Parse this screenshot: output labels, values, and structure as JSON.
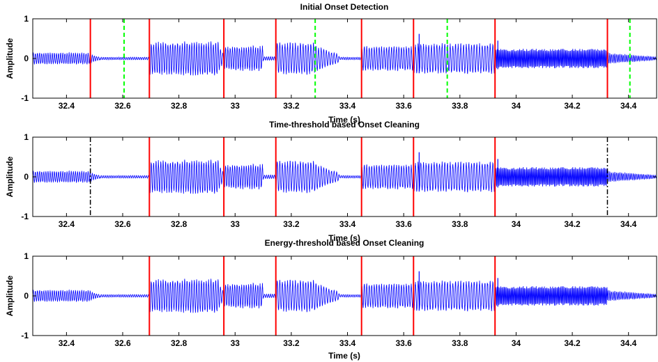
{
  "chart_data": [
    {
      "type": "line",
      "title": "Initial Onset Detection",
      "xlabel": "Time (s)",
      "ylabel": "Amplitude",
      "xlim": [
        32.28,
        34.5
      ],
      "ylim": [
        -1,
        1
      ],
      "xticks": [
        32.4,
        32.6,
        32.8,
        33,
        33.2,
        33.4,
        33.6,
        33.8,
        34,
        34.2,
        34.4
      ],
      "xtick_labels": [
        "32.4",
        "32.6",
        "32.8",
        "33",
        "33.2",
        "33.4",
        "33.6",
        "33.8",
        "34",
        "34.2",
        "34.4"
      ],
      "yticks": [
        -1,
        0,
        1
      ],
      "ytick_labels": [
        "-1",
        "0",
        "1"
      ],
      "series_color": "#0000ff",
      "onsets_solid": [
        32.485,
        32.695,
        32.96,
        33.145,
        33.45,
        33.635,
        33.925,
        34.325
      ],
      "onsets_dashed": [
        32.605,
        33.285,
        33.755,
        34.405
      ],
      "onset_solid_color": "#ff0000",
      "onset_dashed_color": "#00ff00"
    },
    {
      "type": "line",
      "title": "Time-threshold based Onset Cleaning",
      "xlabel": "Time (s)",
      "ylabel": "Amplitude",
      "xlim": [
        32.28,
        34.5
      ],
      "ylim": [
        -1,
        1
      ],
      "xticks": [
        32.4,
        32.6,
        32.8,
        33,
        33.2,
        33.4,
        33.6,
        33.8,
        34,
        34.2,
        34.4
      ],
      "xtick_labels": [
        "32.4",
        "32.6",
        "32.8",
        "33",
        "33.2",
        "33.4",
        "33.6",
        "33.8",
        "34",
        "34.2",
        "34.4"
      ],
      "yticks": [
        -1,
        0,
        1
      ],
      "ytick_labels": [
        "-1",
        "0",
        "1"
      ],
      "series_color": "#0000ff",
      "onsets_solid": [
        32.695,
        32.96,
        33.145,
        33.45,
        33.635,
        33.925
      ],
      "onsets_dashdot": [
        32.485,
        34.325
      ],
      "onset_solid_color": "#ff0000",
      "onset_dashdot_color": "#000000"
    },
    {
      "type": "line",
      "title": "Energy-threshold based Onset Cleaning",
      "xlabel": "Time (s)",
      "ylabel": "Amplitude",
      "xlim": [
        32.28,
        34.5
      ],
      "ylim": [
        -1,
        1
      ],
      "xticks": [
        32.4,
        32.6,
        32.8,
        33,
        33.2,
        33.4,
        33.6,
        33.8,
        34,
        34.2,
        34.4
      ],
      "xtick_labels": [
        "32.4",
        "32.6",
        "32.8",
        "33",
        "33.2",
        "33.4",
        "33.6",
        "33.8",
        "34",
        "34.2",
        "34.4"
      ],
      "yticks": [
        -1,
        0,
        1
      ],
      "ytick_labels": [
        "-1",
        "0",
        "1"
      ],
      "series_color": "#0000ff",
      "onsets_solid": [
        32.695,
        32.96,
        33.145,
        33.45,
        33.635,
        33.925
      ],
      "onset_solid_color": "#ff0000"
    }
  ],
  "waveform": {
    "segments": [
      {
        "start": 32.28,
        "end": 32.485,
        "amp": 0.13,
        "period": 0.0075
      },
      {
        "start": 32.485,
        "end": 32.52,
        "amp": 0.1,
        "period": 0.0075,
        "decay": true
      },
      {
        "start": 32.52,
        "end": 32.695,
        "amp": 0.03,
        "period": 0.007
      },
      {
        "start": 32.695,
        "end": 32.94,
        "amp": 0.38,
        "period": 0.0085
      },
      {
        "start": 32.94,
        "end": 32.96,
        "amp": 0.3,
        "period": 0.0085,
        "decay": true
      },
      {
        "start": 32.96,
        "end": 33.1,
        "amp": 0.28,
        "period": 0.0082
      },
      {
        "start": 33.1,
        "end": 33.145,
        "amp": 0.04,
        "period": 0.007
      },
      {
        "start": 33.145,
        "end": 33.285,
        "amp": 0.36,
        "period": 0.0092
      },
      {
        "start": 33.285,
        "end": 33.37,
        "amp": 0.3,
        "period": 0.0092,
        "decay": true
      },
      {
        "start": 33.37,
        "end": 33.45,
        "amp": 0.03,
        "period": 0.007
      },
      {
        "start": 33.45,
        "end": 33.635,
        "amp": 0.28,
        "period": 0.0088
      },
      {
        "start": 33.635,
        "end": 33.925,
        "amp": 0.34,
        "period": 0.0095
      },
      {
        "start": 33.925,
        "end": 34.325,
        "amp": 0.22,
        "period": 0.0042
      },
      {
        "start": 34.325,
        "end": 34.5,
        "amp": 0.12,
        "period": 0.006,
        "decay": true
      }
    ],
    "spikes": [
      {
        "x": 33.655,
        "y": 0.62
      },
      {
        "x": 33.935,
        "y": 0.45
      }
    ]
  }
}
